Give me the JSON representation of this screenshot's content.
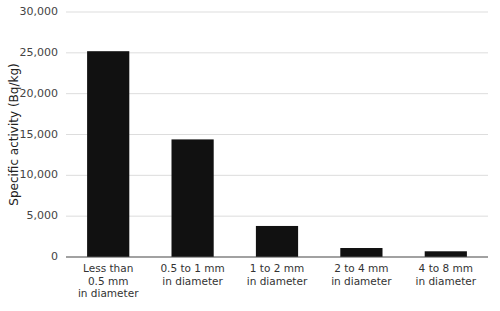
{
  "chart_data": {
    "type": "bar",
    "categories": [
      "Less than\n0.5 mm\nin diameter",
      "0.5 to 1 mm\nin diameter",
      "1 to 2 mm\nin diameter",
      "2 to 4 mm\nin diameter",
      "4 to 8 mm\nin diameter"
    ],
    "values": [
      25200,
      14400,
      3800,
      1100,
      700
    ],
    "color": "#111111",
    "ylabel": "Specific activity (Bq/kg)",
    "ylim": [
      0,
      30000
    ],
    "yticks": [
      0,
      {
        "value": 5000,
        "label": "5,000"
      },
      {
        "value": 10000,
        "label": "10,000"
      },
      {
        "value": 15000,
        "label": "15,000"
      },
      {
        "value": 20000,
        "label": "20,000"
      },
      {
        "value": 25000,
        "label": "25,000"
      },
      {
        "value": 30000,
        "label": "30,000"
      }
    ],
    "grid": true
  }
}
